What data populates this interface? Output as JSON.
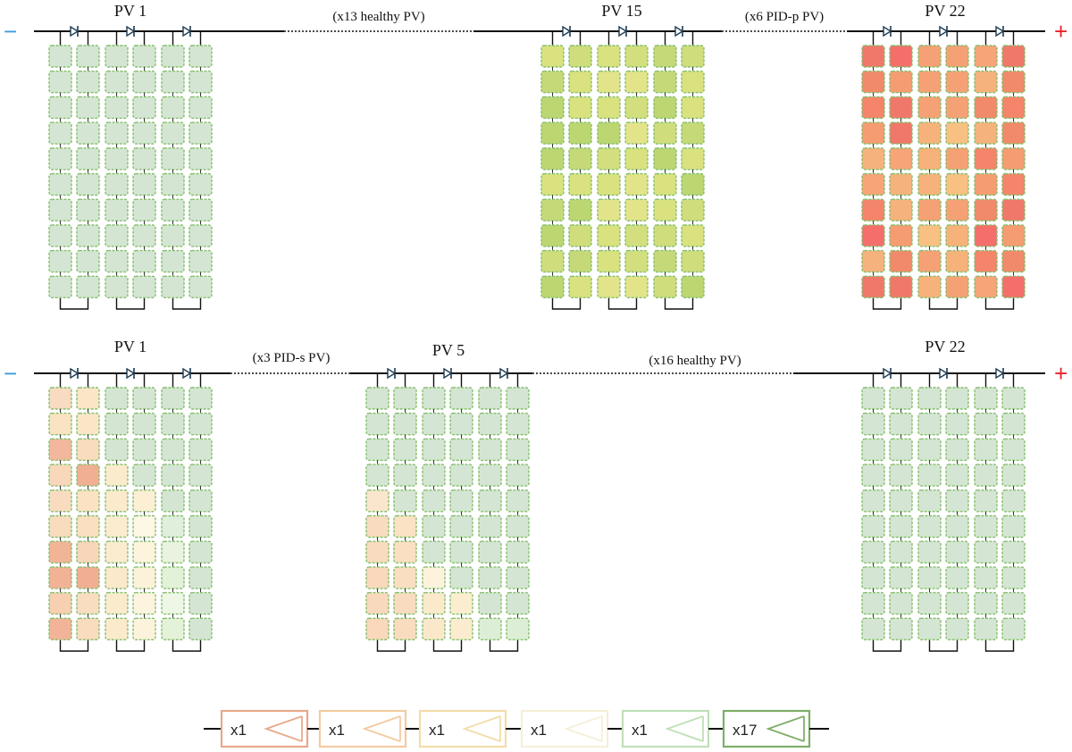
{
  "diagram": {
    "strings": [
      {
        "minus": "−",
        "plus": "+",
        "notes": [
          "(x13 healthy PV)",
          "(x6 PID-p PV)"
        ],
        "panels": [
          {
            "label": "PV 1",
            "palette": "healthy",
            "grid": "all-healthy"
          },
          {
            "label": "PV 15",
            "palette": "pidp-yellow",
            "grid": "pattern-15"
          },
          {
            "label": "PV 22",
            "palette": "pidp-red",
            "grid": "pattern-22"
          }
        ]
      },
      {
        "minus": "−",
        "plus": "+",
        "notes": [
          "(x3 PID-s PV)",
          "(x16 healthy PV)"
        ],
        "panels": [
          {
            "label": "PV 1",
            "palette": "pids",
            "grid": "pattern-s1"
          },
          {
            "label": "PV 5",
            "palette": "pids",
            "grid": "pattern-s5"
          },
          {
            "label": "PV 22",
            "palette": "healthy",
            "grid": "all-healthy"
          }
        ]
      }
    ],
    "legend": [
      {
        "label": "x1",
        "color": "#e8a98a"
      },
      {
        "label": "x1",
        "color": "#f3caa0"
      },
      {
        "label": "x1",
        "color": "#f3dcaa"
      },
      {
        "label": "x1",
        "color": "#f6efd8"
      },
      {
        "label": "x1",
        "color": "#bfe0b6"
      },
      {
        "label": "x17",
        "color": "#7fae68"
      }
    ],
    "colors": {
      "minus": "#3a9ad9",
      "plus": "#e8232a",
      "cell_border": "#86bf6e",
      "healthy_fill": "#d4e6d3",
      "wire": "#111111"
    }
  }
}
